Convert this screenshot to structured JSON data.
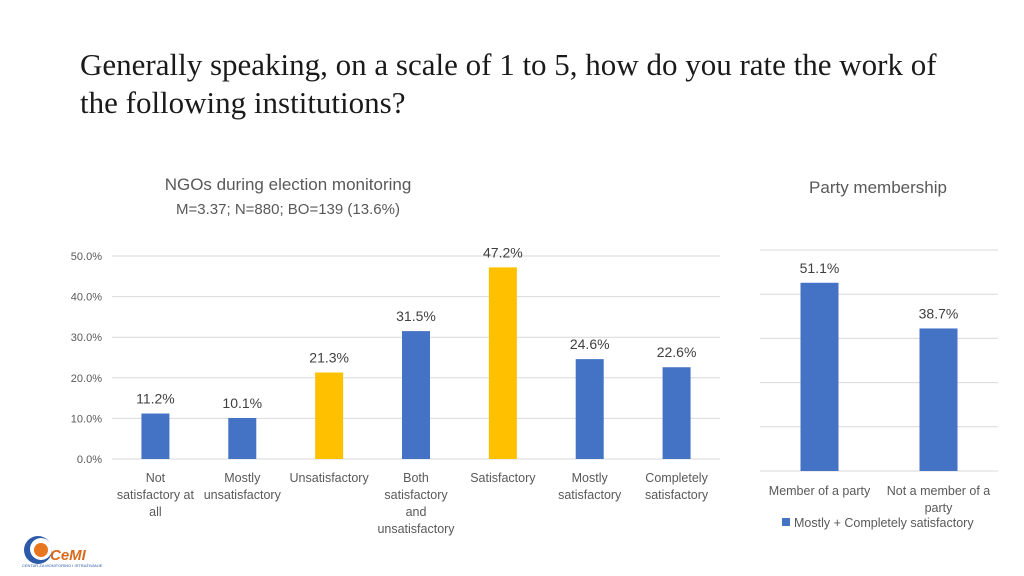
{
  "slide": {
    "title": "Generally speaking, on a scale of 1 to 5, how do you rate the work of the following institutions?"
  },
  "logo": {
    "name": "CeMI",
    "subtitle": "CENTAR ZA MONITORING I ISTRAŽIVANJE"
  },
  "chart_data": [
    {
      "type": "bar",
      "title": "NGOs during election monitoring",
      "subtitle": "M=3.37; N=880; BO=139 (13.6%)",
      "categories": [
        [
          "Not",
          "satisfactory at",
          "all"
        ],
        [
          "Mostly",
          "unsatisfactory"
        ],
        [
          "Unsatisfactory"
        ],
        [
          "Both",
          "satisfactory",
          "and",
          "unsatisfactory"
        ],
        [
          "Satisfactory"
        ],
        [
          "Mostly",
          "satisfactory"
        ],
        [
          "Completely",
          "satisfactory"
        ]
      ],
      "values": [
        11.2,
        10.1,
        21.3,
        31.5,
        47.2,
        24.6,
        22.6
      ],
      "value_labels": [
        "11.2%",
        "10.1%",
        "21.3%",
        "31.5%",
        "47.2%",
        "24.6%",
        "22.6%"
      ],
      "bar_colors": [
        "#4472c4",
        "#4472c4",
        "#ffc000",
        "#4472c4",
        "#ffc000",
        "#4472c4",
        "#4472c4"
      ],
      "ylim": [
        0,
        50
      ],
      "yticks": [
        "0.0%",
        "10.0%",
        "20.0%",
        "30.0%",
        "40.0%",
        "50.0%"
      ],
      "grid": true,
      "legend": null
    },
    {
      "type": "bar",
      "title": "Party membership",
      "categories": [
        [
          "Member of a party"
        ],
        [
          "Not a member of a",
          "party"
        ]
      ],
      "values": [
        51.1,
        38.7
      ],
      "value_labels": [
        "51.1%",
        "38.7%"
      ],
      "bar_colors": [
        "#4472c4",
        "#4472c4"
      ],
      "ylim": [
        0,
        60
      ],
      "grid": true,
      "legend": {
        "position": "bottom",
        "entries": [
          {
            "name": "Mostly + Completely satisfactory",
            "color": "#4472c4"
          }
        ]
      }
    }
  ]
}
